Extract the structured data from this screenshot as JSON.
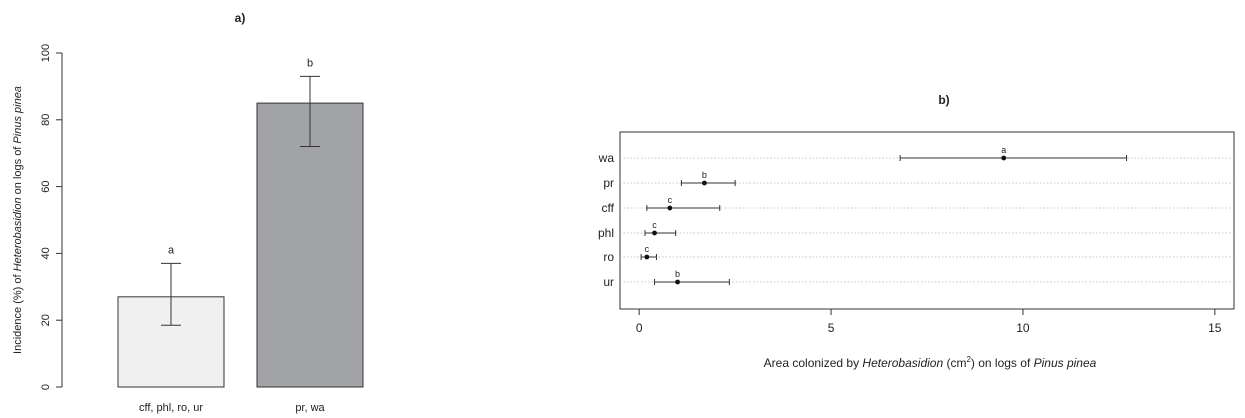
{
  "chart_data": [
    {
      "type": "bar",
      "title": "a)",
      "categories": [
        "cff, phl, ro, ur",
        "pr, wa"
      ],
      "values": [
        27,
        85
      ],
      "error_low": [
        18.5,
        72
      ],
      "error_high": [
        37,
        93
      ],
      "letters": [
        "a",
        "b"
      ],
      "bar_colors": [
        "#f0f0f0",
        "#a2a3a6"
      ],
      "ylabel_parts": [
        "Incidence (%) of ",
        "Heterobasidion",
        " on logs of ",
        "Pinus pinea"
      ],
      "ylim": [
        0,
        100
      ],
      "yticks": [
        0,
        20,
        40,
        60,
        80,
        100
      ]
    },
    {
      "type": "scatter",
      "title": "b)",
      "categories": [
        "wa",
        "pr",
        "cff",
        "phl",
        "ro",
        "ur"
      ],
      "values": [
        9.5,
        1.7,
        0.8,
        0.4,
        0.2,
        1.0
      ],
      "error_low": [
        6.8,
        1.1,
        0.2,
        0.15,
        0.05,
        0.4
      ],
      "error_high": [
        12.7,
        2.5,
        2.1,
        0.95,
        0.45,
        2.35
      ],
      "letters": [
        "a",
        "b",
        "c",
        "c",
        "c",
        "b"
      ],
      "xlabel_parts": [
        "Area colonized by ",
        "Heterobasidion",
        " (cm",
        "2",
        ") on logs of ",
        "Pinus pinea"
      ],
      "xlim": [
        -0.5,
        15.5
      ],
      "xticks": [
        0,
        5,
        10,
        15
      ],
      "grid": "horizontal dotted"
    }
  ]
}
